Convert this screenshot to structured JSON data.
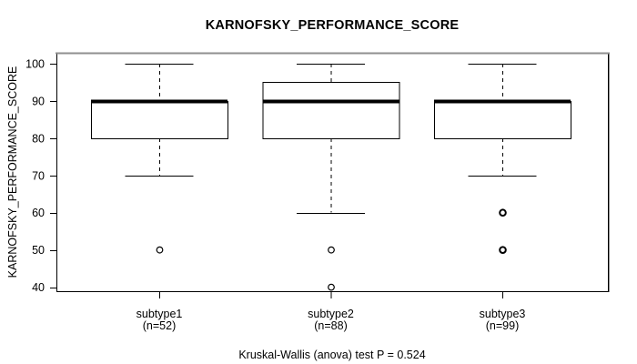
{
  "title": "KARNOFSKY_PERFORMANCE_SCORE",
  "caption": "Kruskal-Wallis (anova) test P = 0.524",
  "colors": {
    "ink": "#000000",
    "frame_gray": "#8f8f8f",
    "background": "#ffffff"
  },
  "chart_data": {
    "type": "boxplot",
    "title": "KARNOFSKY_PERFORMANCE_SCORE",
    "xlabel": "",
    "ylabel": "KARNOFSKY_PERFORMANCE_SCORE",
    "ylim": [
      40,
      100
    ],
    "yticks": [
      40,
      50,
      60,
      70,
      80,
      90,
      100
    ],
    "grid": false,
    "legend": false,
    "caption": "Kruskal-Wallis (anova) test P = 0.524",
    "groups": [
      {
        "label": "subtype1",
        "sublabel": "(n=52)",
        "n": 52,
        "whisker_low": 70,
        "q1": 80,
        "median": 90,
        "q3": 90,
        "whisker_high": 100,
        "outliers": [
          50
        ],
        "outlier_bold": false
      },
      {
        "label": "subtype2",
        "sublabel": "(n=88)",
        "n": 88,
        "whisker_low": 60,
        "q1": 80,
        "median": 90,
        "q3": 95,
        "whisker_high": 100,
        "outliers": [
          50,
          40
        ],
        "outlier_bold": false
      },
      {
        "label": "subtype3",
        "sublabel": "(n=99)",
        "n": 99,
        "whisker_low": 70,
        "q1": 80,
        "median": 90,
        "q3": 90,
        "whisker_high": 100,
        "outliers": [
          60,
          50
        ],
        "outlier_bold": true
      }
    ]
  }
}
